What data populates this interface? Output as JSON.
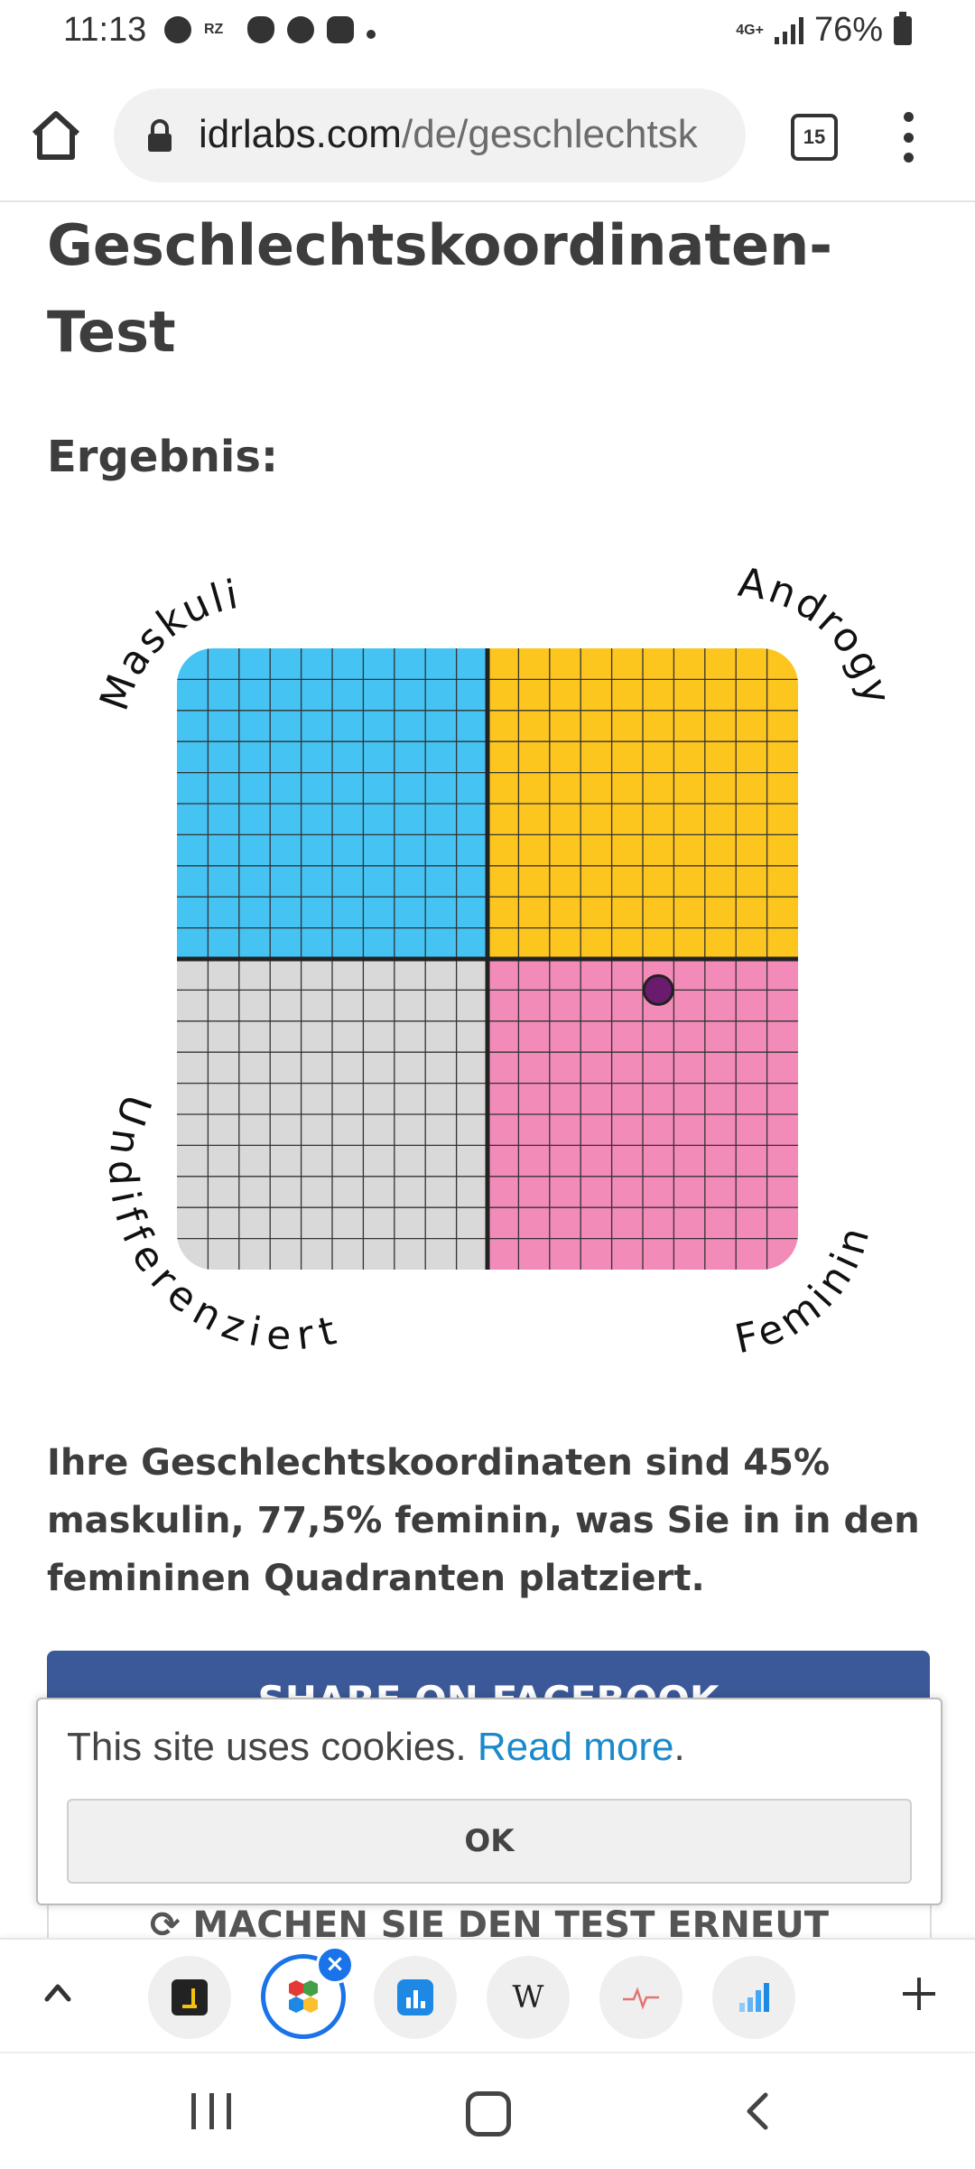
{
  "status_bar": {
    "time": "11:13",
    "network": "4G+",
    "battery": "76%",
    "icons": [
      "circle-face-icon",
      "rz-icon",
      "hand-icon",
      "chrome-icon",
      "flower-icon",
      "dot-icon"
    ],
    "rz_label": "RZ"
  },
  "browser": {
    "url_domain": "idrlabs.com",
    "url_path": "/de/geschlechtsk",
    "tab_count": "15"
  },
  "page": {
    "title": "Geschlechtskoordinaten-Test",
    "result_label": "Ergebnis:",
    "result_text": "Ihre Geschlechtskoordinaten sind 45% maskulin, 77,5% feminin, was Sie in in den femininen Quadranten platziert.",
    "share_facebook": "SHARE ON FACEBOOK",
    "retake": "MACHEN SIE DEN TEST ERNEUT"
  },
  "chart_data": {
    "type": "scatter",
    "quadrant_labels": {
      "top_left": "Maskulin",
      "top_right": "Androgyn",
      "bottom_left": "Undifferenziert",
      "bottom_right": "Feminin"
    },
    "quadrant_colors": {
      "top_left": "#45c3f2",
      "top_right": "#fdc61e",
      "bottom_left": "#d9d9d9",
      "bottom_right": "#f38bb8"
    },
    "point_color": "#6a1b6e",
    "xlim": [
      0,
      100
    ],
    "ylim": [
      0,
      100
    ],
    "points": [
      {
        "x": 77.5,
        "y": 45
      }
    ],
    "grid": true
  },
  "cookie_banner": {
    "text": "This site uses cookies. ",
    "link": "Read more",
    "period": ".",
    "ok": "OK"
  },
  "tab_strip": {
    "tabs": [
      "tab-dark-icon",
      "tab-active-apps-icon",
      "tab-chart-icon",
      "tab-wikipedia-icon",
      "tab-pulse-icon",
      "tab-bars-icon"
    ],
    "wiki_letter": "W"
  }
}
